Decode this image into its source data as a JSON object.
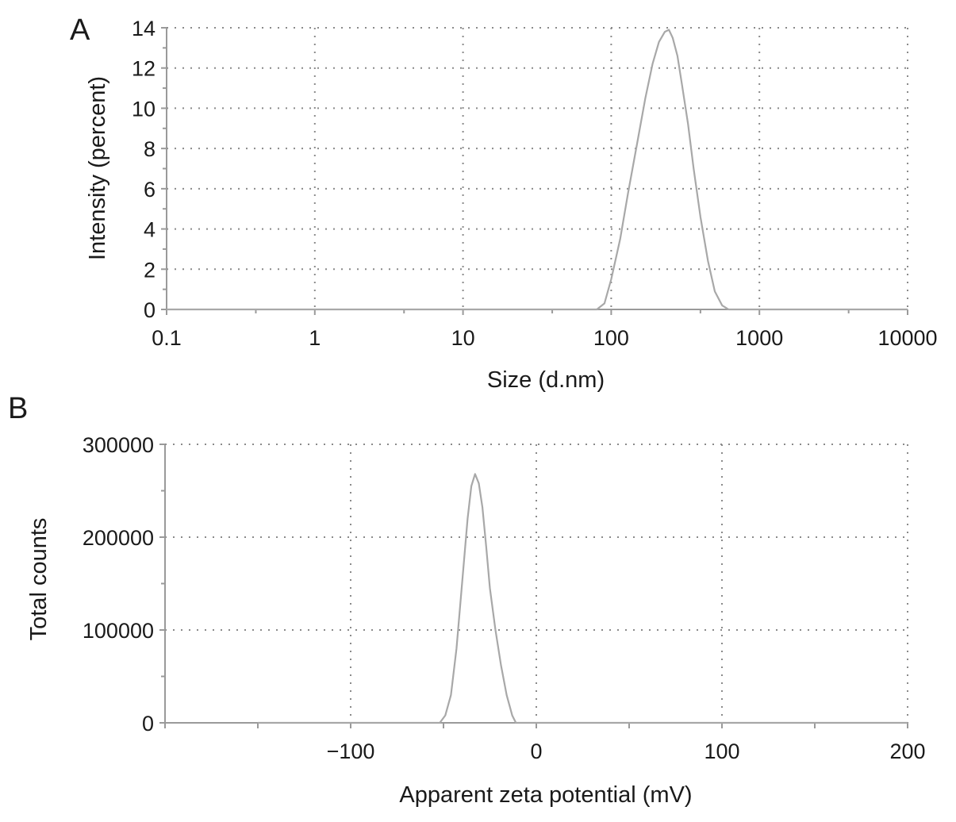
{
  "chart_data": [
    {
      "panel_label": "A",
      "type": "line",
      "xlabel": "Size (d.nm)",
      "ylabel": "Intensity (percent)",
      "xscale": "log",
      "xlim": [
        0.1,
        10000
      ],
      "ylim": [
        0,
        14
      ],
      "x_ticks": [
        0.1,
        1,
        10,
        100,
        1000,
        10000
      ],
      "x_tick_labels": [
        "0.1",
        "1",
        "10",
        "100",
        "1000",
        "10000"
      ],
      "y_ticks": [
        0,
        2,
        4,
        6,
        8,
        10,
        12,
        14
      ],
      "y_tick_labels": [
        "0",
        "2",
        "4",
        "6",
        "8",
        "10",
        "12",
        "14"
      ],
      "grid": true,
      "series": [
        {
          "color": "#a8a8a8",
          "x": [
            0.1,
            80,
            90,
            100,
            115,
            130,
            150,
            170,
            190,
            210,
            230,
            245,
            260,
            280,
            300,
            330,
            360,
            400,
            450,
            500,
            560,
            620,
            700,
            1000,
            10000
          ],
          "y": [
            0,
            0,
            0.3,
            1.5,
            3.5,
            5.8,
            8.3,
            10.5,
            12.2,
            13.3,
            13.8,
            13.9,
            13.5,
            12.6,
            11.2,
            9.2,
            7.0,
            4.6,
            2.4,
            0.9,
            0.2,
            0,
            0,
            0,
            0
          ]
        }
      ]
    },
    {
      "panel_label": "B",
      "type": "line",
      "xlabel": "Apparent zeta potential (mV)",
      "ylabel": "Total counts",
      "xlim": [
        -200,
        200
      ],
      "ylim": [
        0,
        300000
      ],
      "x_ticks": [
        -100,
        0,
        100,
        200
      ],
      "x_tick_labels": [
        "−100",
        "0",
        "100",
        "200"
      ],
      "y_ticks": [
        0,
        100000,
        200000,
        300000
      ],
      "y_tick_labels": [
        "0",
        "100000",
        "200000",
        "300000"
      ],
      "grid": true,
      "series": [
        {
          "color": "#a8a8a8",
          "x": [
            -150,
            -52,
            -49,
            -46,
            -43,
            -40,
            -37,
            -35,
            -33,
            -31,
            -29,
            -27,
            -25,
            -22,
            -19,
            -16,
            -13,
            -11,
            0,
            200
          ],
          "y": [
            0,
            0,
            8000,
            30000,
            80000,
            150000,
            220000,
            255000,
            268000,
            258000,
            232000,
            190000,
            145000,
            100000,
            62000,
            30000,
            8000,
            0,
            0,
            0
          ]
        }
      ]
    }
  ]
}
